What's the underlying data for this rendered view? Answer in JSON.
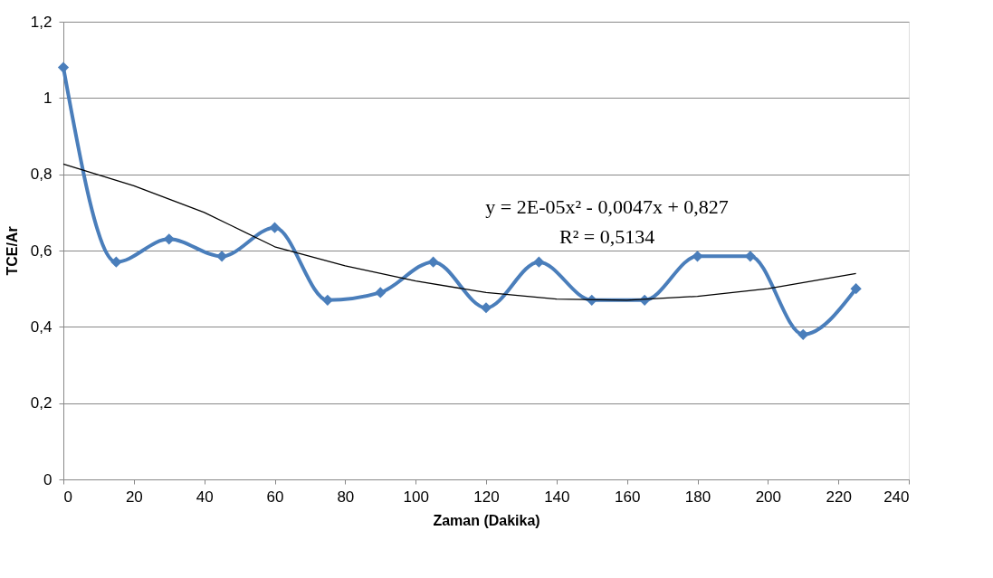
{
  "chart_data": {
    "type": "line",
    "xlabel": "Zaman (Dakika)",
    "ylabel": "TCE/Ar",
    "x": [
      0,
      15,
      30,
      45,
      60,
      75,
      90,
      105,
      120,
      135,
      150,
      165,
      180,
      195,
      210,
      225
    ],
    "series": [
      {
        "color": "#4a7ebb",
        "marker": "diamond",
        "line_style": "solid",
        "values": [
          1.08,
          0.57,
          0.63,
          0.585,
          0.66,
          0.47,
          0.49,
          0.57,
          0.45,
          0.57,
          0.47,
          0.47,
          0.585,
          0.585,
          0.38,
          0.5
        ]
      },
      {
        "type": "line",
        "color": "#000000",
        "marker": "none",
        "line_style": "solid",
        "x": [
          0,
          20,
          40,
          60,
          80,
          100,
          120,
          140,
          160,
          180,
          200,
          225
        ],
        "values": [
          0.827,
          0.77,
          0.7,
          0.61,
          0.56,
          0.52,
          0.49,
          0.473,
          0.47,
          0.48,
          0.5,
          0.54
        ]
      }
    ],
    "xlim": [
      0,
      240
    ],
    "xticks": [
      0,
      20,
      40,
      60,
      80,
      100,
      120,
      140,
      160,
      180,
      200,
      220,
      240
    ],
    "ylim": [
      0,
      1.2
    ],
    "yticks": [
      0,
      {
        "value": 0.2,
        "label": "0,2"
      },
      {
        "value": 0.4,
        "label": "0,4"
      },
      {
        "value": 0.6,
        "label": "0,6"
      },
      {
        "value": 0.8,
        "label": "0,8"
      },
      1,
      {
        "value": 1.2,
        "label": "1,2"
      }
    ],
    "grid": "y",
    "annotations": [
      "y = 2E-05x² - 0,0047x + 0,827",
      "R² = 0,5134"
    ]
  }
}
